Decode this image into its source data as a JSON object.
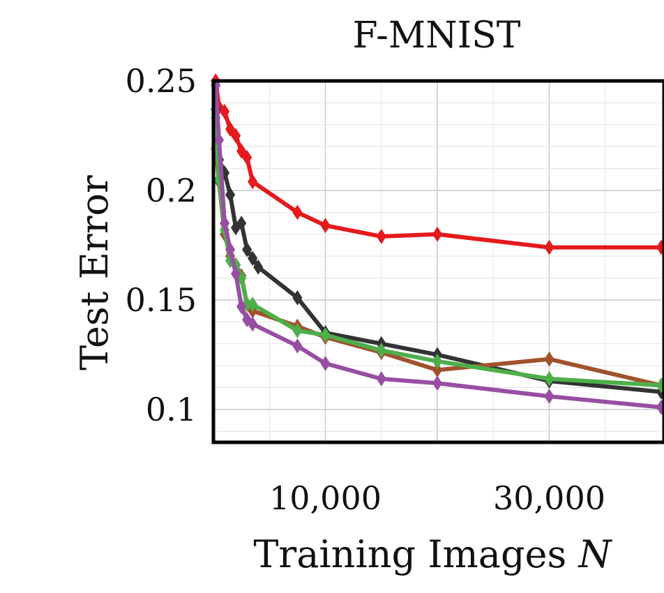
{
  "chart_data": {
    "type": "line",
    "title": "F-MNIST",
    "xlabel": "Training Images N",
    "ylabel": "Test Error",
    "xlim": [
      0,
      40000
    ],
    "ylim": [
      0.085,
      0.25
    ],
    "xticks": [
      10000,
      30000
    ],
    "xtick_labels": [
      "10,000",
      "30,000"
    ],
    "yticks": [
      0.1,
      0.15,
      0.2,
      0.25
    ],
    "ytick_labels": [
      "0.1",
      "0.15",
      "0.2",
      "0.25"
    ],
    "grid": true,
    "x": [
      200,
      500,
      1000,
      1500,
      2000,
      2500,
      3000,
      3500,
      4000,
      5000,
      7500,
      10000,
      15000,
      20000,
      30000,
      40000
    ],
    "series": [
      {
        "color": "#e41a1c",
        "values": [
          0.25,
          0.238,
          0.236,
          0.228,
          0.225,
          0.218,
          0.215,
          0.204,
          null,
          null,
          0.19,
          0.184,
          0.179,
          0.18,
          0.174,
          0.174
        ]
      },
      {
        "color": "#333333",
        "values": [
          0.237,
          0.214,
          0.208,
          0.198,
          0.183,
          0.185,
          0.173,
          0.169,
          0.165,
          null,
          0.151,
          0.135,
          0.13,
          0.125,
          0.113,
          0.108
        ]
      },
      {
        "color": "#a0522d",
        "values": [
          0.219,
          0.204,
          0.18,
          0.17,
          0.166,
          0.161,
          0.148,
          0.145,
          null,
          null,
          0.138,
          0.133,
          0.126,
          0.118,
          0.123,
          0.111
        ]
      },
      {
        "color": "#4daf4a",
        "values": [
          0.233,
          0.205,
          0.182,
          0.168,
          0.166,
          0.16,
          0.148,
          0.148,
          null,
          null,
          0.136,
          0.134,
          0.127,
          0.122,
          0.114,
          0.111
        ]
      },
      {
        "color": "#984ea3",
        "values": [
          0.248,
          0.223,
          0.185,
          0.173,
          0.162,
          0.147,
          0.141,
          0.139,
          null,
          null,
          0.129,
          0.121,
          0.114,
          0.112,
          0.106,
          0.101
        ]
      }
    ]
  }
}
